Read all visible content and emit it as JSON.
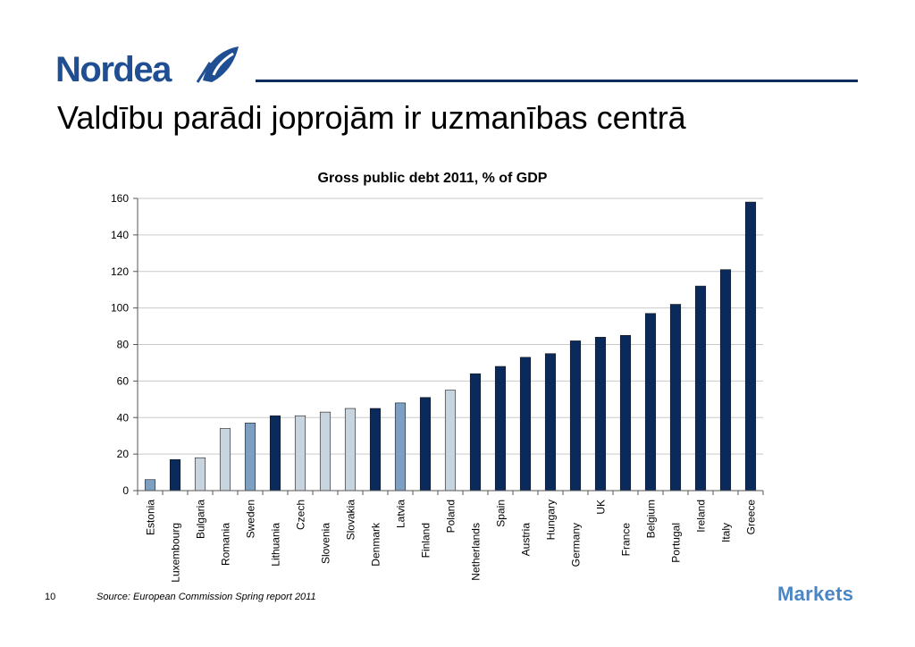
{
  "header": {
    "logo_text": "Nordea",
    "title": "Valdību parādi joprojām ir uzmanības centrā"
  },
  "colors": {
    "dark_navy": "#0b2a5c",
    "light_gray_blue": "#c8d4de",
    "mid_blue": "#7d9fc2",
    "logo_blue": "#1f4e93",
    "markets_blue": "#4a86c5"
  },
  "chart_data": {
    "type": "bar",
    "title": "Gross public debt 2011, % of GDP",
    "xlabel": "",
    "ylabel": "",
    "ylim": [
      0,
      160
    ],
    "yticks": [
      0,
      20,
      40,
      60,
      80,
      100,
      120,
      140,
      160
    ],
    "grid": true,
    "legend": "none",
    "categories": [
      "Estonia",
      "Luxembourg",
      "Bulgaria",
      "Romania",
      "Sweden",
      "Lithuania",
      "Czech",
      "Slovenia",
      "Slovakia",
      "Denmark",
      "Latvia",
      "Finland",
      "Poland",
      "Netherlands",
      "Spain",
      "Austria",
      "Hungary",
      "Germany",
      "UK",
      "France",
      "Belgium",
      "Portugal",
      "Ireland",
      "Italy",
      "Greece"
    ],
    "values": [
      6,
      17,
      18,
      34,
      37,
      41,
      41,
      43,
      45,
      45,
      48,
      51,
      55,
      64,
      68,
      73,
      75,
      82,
      84,
      85,
      97,
      102,
      112,
      121,
      158
    ],
    "bar_colors": [
      "mid_blue",
      "dark_navy",
      "light_gray_blue",
      "light_gray_blue",
      "mid_blue",
      "dark_navy",
      "light_gray_blue",
      "light_gray_blue",
      "light_gray_blue",
      "dark_navy",
      "mid_blue",
      "dark_navy",
      "light_gray_blue",
      "dark_navy",
      "dark_navy",
      "dark_navy",
      "dark_navy",
      "dark_navy",
      "dark_navy",
      "dark_navy",
      "dark_navy",
      "dark_navy",
      "dark_navy",
      "dark_navy",
      "dark_navy"
    ]
  },
  "footer": {
    "page_number": "10",
    "source": "Source: European Commission Spring report 2011",
    "markets_logo": "Markets"
  }
}
